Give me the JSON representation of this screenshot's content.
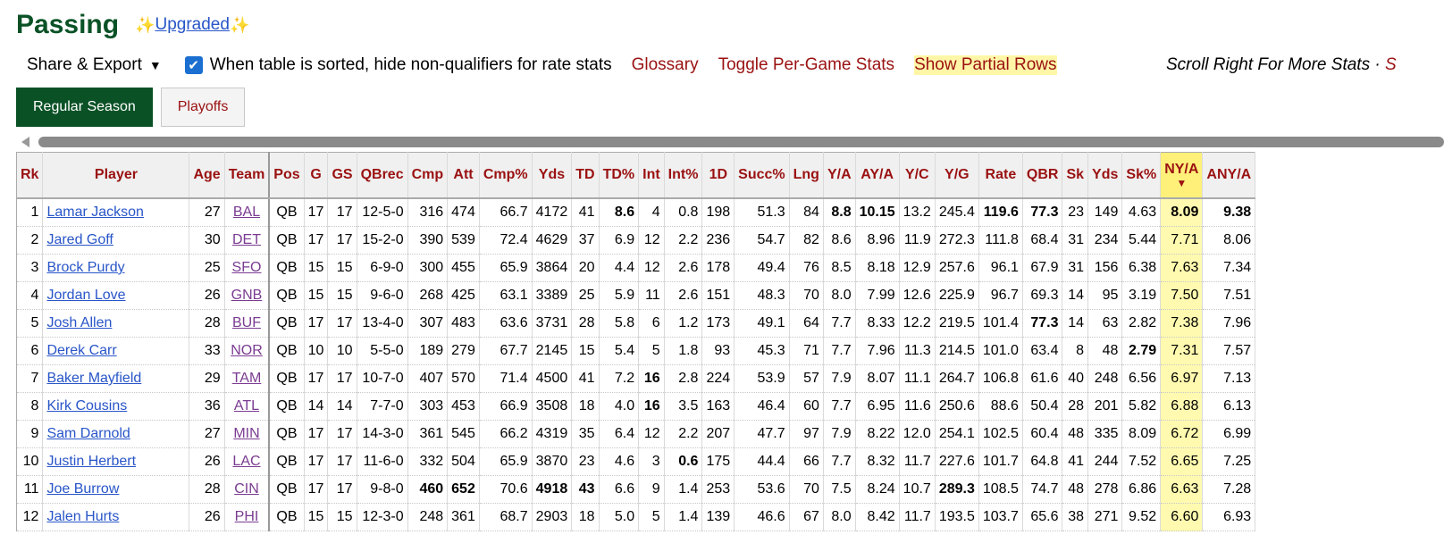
{
  "page": {
    "title": "Passing",
    "sparkle_icon": "sparkle-icon",
    "upgraded_label": "Upgraded"
  },
  "controls": {
    "share_label": "Share & Export",
    "share_caret": "▼",
    "checkbox_checked": true,
    "hide_nonqualifiers_label": "When table is sorted, hide non-qualifiers for rate stats",
    "glossary_label": "Glossary",
    "toggle_per_game_label": "Toggle Per-Game Stats",
    "show_partial_rows_label": "Show Partial Rows",
    "scroll_note": "Scroll Right For More Stats ·",
    "scroll_note_tail": "S"
  },
  "tabs": [
    {
      "label": "Regular Season",
      "active": true
    },
    {
      "label": "Playoffs",
      "active": false
    }
  ],
  "table": {
    "columns": [
      "Rk",
      "Player",
      "Age",
      "Team",
      "Pos",
      "G",
      "GS",
      "QBrec",
      "Cmp",
      "Att",
      "Cmp%",
      "Yds",
      "TD",
      "TD%",
      "Int",
      "Int%",
      "1D",
      "Succ%",
      "Lng",
      "Y/A",
      "AY/A",
      "Y/C",
      "Y/G",
      "Rate",
      "QBR",
      "Sk",
      "Yds",
      "Sk%",
      "NY/A",
      "ANY/A"
    ],
    "sorted_column_index": 28,
    "sort_arrow": "▼",
    "rows": [
      [
        "1",
        "Lamar Jackson",
        "27",
        "BAL",
        "QB",
        "17",
        "17",
        "12-5-0",
        "316",
        "474",
        "66.7",
        "4172",
        "41",
        "8.6",
        "4",
        "0.8",
        "198",
        "51.3",
        "84",
        "8.8",
        "10.15",
        "13.2",
        "245.4",
        "119.6",
        "77.3",
        "23",
        "149",
        "4.63",
        "8.09",
        "9.38"
      ],
      [
        "2",
        "Jared Goff",
        "30",
        "DET",
        "QB",
        "17",
        "17",
        "15-2-0",
        "390",
        "539",
        "72.4",
        "4629",
        "37",
        "6.9",
        "12",
        "2.2",
        "236",
        "54.7",
        "82",
        "8.6",
        "8.96",
        "11.9",
        "272.3",
        "111.8",
        "68.4",
        "31",
        "234",
        "5.44",
        "7.71",
        "8.06"
      ],
      [
        "3",
        "Brock Purdy",
        "25",
        "SFO",
        "QB",
        "15",
        "15",
        "6-9-0",
        "300",
        "455",
        "65.9",
        "3864",
        "20",
        "4.4",
        "12",
        "2.6",
        "178",
        "49.4",
        "76",
        "8.5",
        "8.18",
        "12.9",
        "257.6",
        "96.1",
        "67.9",
        "31",
        "156",
        "6.38",
        "7.63",
        "7.34"
      ],
      [
        "4",
        "Jordan Love",
        "26",
        "GNB",
        "QB",
        "15",
        "15",
        "9-6-0",
        "268",
        "425",
        "63.1",
        "3389",
        "25",
        "5.9",
        "11",
        "2.6",
        "151",
        "48.3",
        "70",
        "8.0",
        "7.99",
        "12.6",
        "225.9",
        "96.7",
        "69.3",
        "14",
        "95",
        "3.19",
        "7.50",
        "7.51"
      ],
      [
        "5",
        "Josh Allen",
        "28",
        "BUF",
        "QB",
        "17",
        "17",
        "13-4-0",
        "307",
        "483",
        "63.6",
        "3731",
        "28",
        "5.8",
        "6",
        "1.2",
        "173",
        "49.1",
        "64",
        "7.7",
        "8.33",
        "12.2",
        "219.5",
        "101.4",
        "77.3",
        "14",
        "63",
        "2.82",
        "7.38",
        "7.96"
      ],
      [
        "6",
        "Derek Carr",
        "33",
        "NOR",
        "QB",
        "10",
        "10",
        "5-5-0",
        "189",
        "279",
        "67.7",
        "2145",
        "15",
        "5.4",
        "5",
        "1.8",
        "93",
        "45.3",
        "71",
        "7.7",
        "7.96",
        "11.3",
        "214.5",
        "101.0",
        "63.4",
        "8",
        "48",
        "2.79",
        "7.31",
        "7.57"
      ],
      [
        "7",
        "Baker Mayfield",
        "29",
        "TAM",
        "QB",
        "17",
        "17",
        "10-7-0",
        "407",
        "570",
        "71.4",
        "4500",
        "41",
        "7.2",
        "16",
        "2.8",
        "224",
        "53.9",
        "57",
        "7.9",
        "8.07",
        "11.1",
        "264.7",
        "106.8",
        "61.6",
        "40",
        "248",
        "6.56",
        "6.97",
        "7.13"
      ],
      [
        "8",
        "Kirk Cousins",
        "36",
        "ATL",
        "QB",
        "14",
        "14",
        "7-7-0",
        "303",
        "453",
        "66.9",
        "3508",
        "18",
        "4.0",
        "16",
        "3.5",
        "163",
        "46.4",
        "60",
        "7.7",
        "6.95",
        "11.6",
        "250.6",
        "88.6",
        "50.4",
        "28",
        "201",
        "5.82",
        "6.88",
        "6.13"
      ],
      [
        "9",
        "Sam Darnold",
        "27",
        "MIN",
        "QB",
        "17",
        "17",
        "14-3-0",
        "361",
        "545",
        "66.2",
        "4319",
        "35",
        "6.4",
        "12",
        "2.2",
        "207",
        "47.7",
        "97",
        "7.9",
        "8.22",
        "12.0",
        "254.1",
        "102.5",
        "60.4",
        "48",
        "335",
        "8.09",
        "6.72",
        "6.99"
      ],
      [
        "10",
        "Justin Herbert",
        "26",
        "LAC",
        "QB",
        "17",
        "17",
        "11-6-0",
        "332",
        "504",
        "65.9",
        "3870",
        "23",
        "4.6",
        "3",
        "0.6",
        "175",
        "44.4",
        "66",
        "7.7",
        "8.32",
        "11.7",
        "227.6",
        "101.7",
        "64.8",
        "41",
        "244",
        "7.52",
        "6.65",
        "7.25"
      ],
      [
        "11",
        "Joe Burrow",
        "28",
        "CIN",
        "QB",
        "17",
        "17",
        "9-8-0",
        "460",
        "652",
        "70.6",
        "4918",
        "43",
        "6.6",
        "9",
        "1.4",
        "253",
        "53.6",
        "70",
        "7.5",
        "8.24",
        "10.7",
        "289.3",
        "108.5",
        "74.7",
        "48",
        "278",
        "6.86",
        "6.63",
        "7.28"
      ],
      [
        "12",
        "Jalen Hurts",
        "26",
        "PHI",
        "QB",
        "15",
        "15",
        "12-3-0",
        "248",
        "361",
        "68.7",
        "2903",
        "18",
        "5.0",
        "5",
        "1.4",
        "139",
        "46.6",
        "67",
        "8.0",
        "8.42",
        "11.7",
        "193.5",
        "103.7",
        "65.6",
        "38",
        "271",
        "9.52",
        "6.60",
        "6.93"
      ]
    ],
    "bold_cells": [
      [
        0,
        13
      ],
      [
        0,
        19
      ],
      [
        0,
        20
      ],
      [
        0,
        23
      ],
      [
        0,
        24
      ],
      [
        0,
        28
      ],
      [
        0,
        29
      ],
      [
        4,
        24
      ],
      [
        5,
        27
      ],
      [
        6,
        14
      ],
      [
        7,
        14
      ],
      [
        9,
        15
      ],
      [
        10,
        8
      ],
      [
        10,
        9
      ],
      [
        10,
        11
      ],
      [
        10,
        12
      ],
      [
        10,
        22
      ]
    ]
  }
}
